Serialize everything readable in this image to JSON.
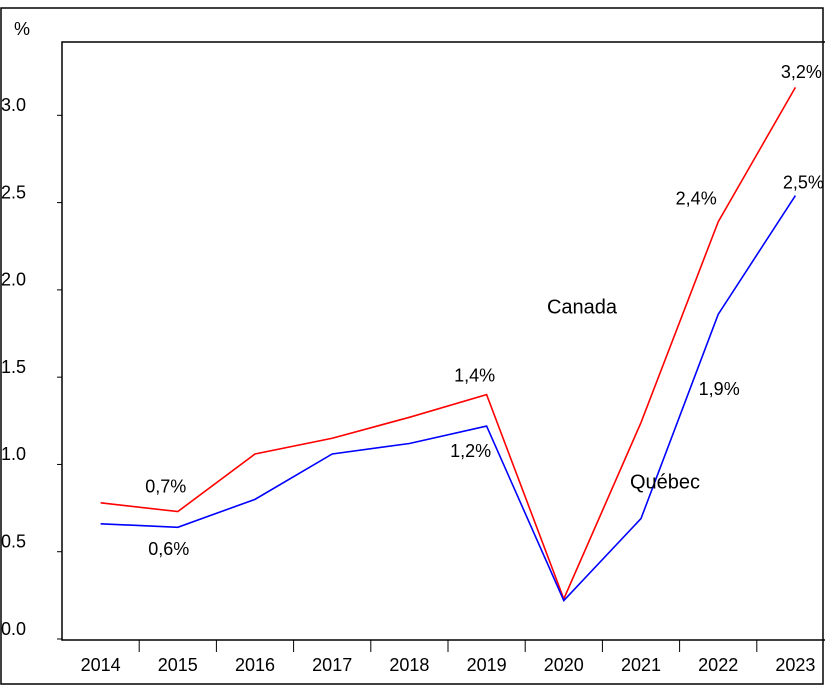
{
  "chart_data": {
    "type": "line",
    "y_label": "%",
    "categories": [
      "2014",
      "2015",
      "2016",
      "2017",
      "2018",
      "2019",
      "2020",
      "2021",
      "2022",
      "2023"
    ],
    "series": [
      {
        "name": "Canada",
        "color": "#ff0000",
        "values": [
          0.78,
          0.73,
          1.06,
          1.15,
          1.27,
          1.4,
          0.23,
          1.24,
          2.39,
          3.16
        ],
        "value_labels": [
          null,
          "0,7%",
          null,
          null,
          null,
          "1,4%",
          null,
          null,
          "2,4%",
          "3,2%"
        ]
      },
      {
        "name": "Québec",
        "color": "#0000ff",
        "values": [
          0.66,
          0.64,
          0.8,
          1.06,
          1.12,
          1.22,
          0.22,
          0.69,
          1.86,
          2.54
        ],
        "value_labels": [
          null,
          "0,6%",
          null,
          null,
          null,
          "1,2%",
          null,
          null,
          "1,9%",
          "2,5%"
        ]
      }
    ],
    "ylim": [
      0,
      3.42
    ],
    "yticks": [
      {
        "value": 0,
        "label": "0.0"
      },
      0.5,
      {
        "value": 1,
        "label": "1.0"
      },
      1.5,
      {
        "value": 2,
        "label": "2.0"
      },
      2.5,
      {
        "value": 3,
        "label": "3.0"
      }
    ]
  }
}
